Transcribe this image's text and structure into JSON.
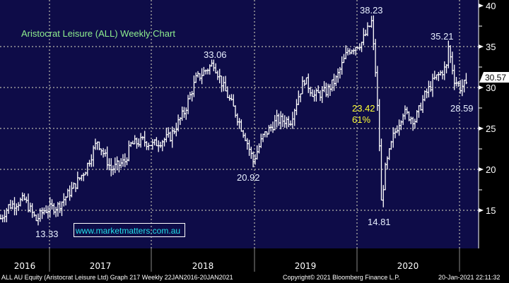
{
  "chart_data": {
    "type": "ohlc",
    "title": "Aristocrat Leisure (ALL) Weekly Chart",
    "xlabel": "",
    "ylabel": "",
    "frequency": "Weekly",
    "ylim": [
      10,
      40
    ],
    "y_ticks": [
      15,
      20,
      25,
      30,
      35,
      40
    ],
    "x_tick_labels": [
      "2016",
      "2017",
      "2018",
      "2019",
      "2020"
    ],
    "grid": true,
    "last_price": "30.57",
    "anchor_weeks": [
      0,
      4,
      12,
      18,
      22,
      29,
      36,
      43,
      49,
      56,
      63,
      66,
      72,
      77,
      86,
      93,
      99,
      108,
      113,
      118,
      124,
      128,
      133,
      140,
      147,
      151,
      154,
      159,
      165,
      170,
      176,
      183,
      188,
      190,
      192,
      193,
      195,
      199,
      204,
      210,
      215,
      220,
      226,
      227,
      230,
      233,
      236
    ],
    "anchor_closes": [
      14.0,
      15.5,
      16.3,
      13.8,
      15.0,
      15.5,
      17.5,
      20.0,
      23.5,
      20.0,
      21.0,
      23.0,
      23.5,
      23.0,
      24.0,
      27.0,
      31.0,
      33.0,
      30.0,
      27.5,
      24.0,
      21.0,
      24.0,
      26.0,
      26.0,
      29.0,
      31.0,
      29.0,
      29.5,
      31.0,
      34.5,
      35.5,
      38.0,
      32.0,
      23.0,
      16.0,
      20.0,
      24.0,
      27.0,
      26.0,
      29.0,
      31.0,
      32.5,
      35.0,
      31.0,
      30.0,
      30.57
    ],
    "annotations": [
      {
        "text": "13.33",
        "type": "low"
      },
      {
        "text": "33.06",
        "type": "high"
      },
      {
        "text": "20.92",
        "type": "low"
      },
      {
        "text": "38.23",
        "type": "high"
      },
      {
        "text": "14.81",
        "type": "low"
      },
      {
        "text": "35.21",
        "type": "high"
      },
      {
        "text": "28.59",
        "type": "low"
      },
      {
        "text": "23.42",
        "type": "retrace"
      },
      {
        "text": "61%",
        "type": "retrace"
      }
    ]
  },
  "watermark": "www.marketmatters.com.au",
  "footer": {
    "security": "ALL AU Equity (Aristocrat Leisure Ltd) Graph 217  Weekly 22JAN2016-20JAN2021",
    "copyright": "Copyright© 2021 Bloomberg Finance L.P.",
    "timestamp": "20-Jan-2021 22:11:32"
  },
  "colors": {
    "background": "#0e0c48",
    "bars": "#ffffff",
    "grid": "#9a9a9a",
    "title": "#8fef8f",
    "retrace": "#ffff33",
    "watermark": "#22e0e8",
    "label": "#e8f0ff"
  }
}
